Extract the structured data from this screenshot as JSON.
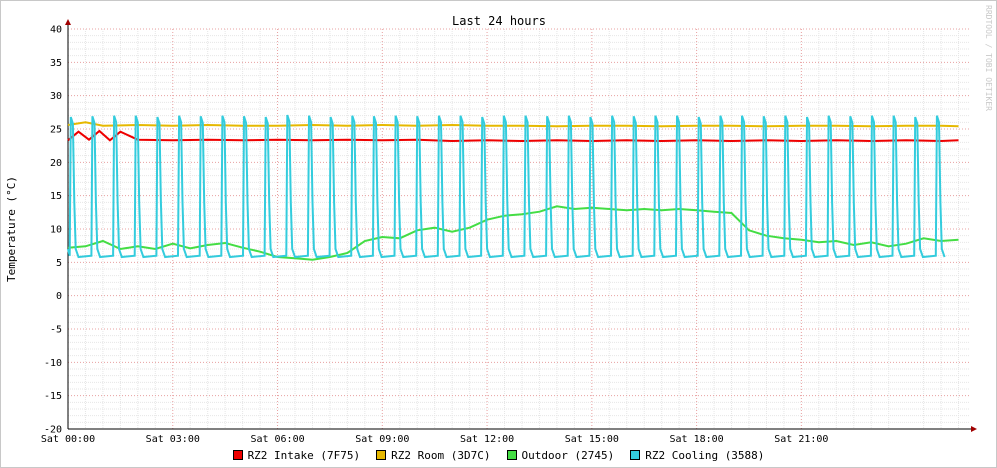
{
  "chart_data": {
    "type": "line",
    "title": "Last 24 hours",
    "ylabel": "Temperature (°C)",
    "xlabel": "",
    "watermark": "RRDTOOL / TOBI OETIKER",
    "ylim": [
      -20,
      40
    ],
    "yticks": [
      -20,
      -15,
      -10,
      -5,
      0,
      5,
      10,
      15,
      20,
      25,
      30,
      35,
      40
    ],
    "xlim": [
      0,
      25.8
    ],
    "xticks": [
      {
        "x": 0,
        "label": "Sat 00:00"
      },
      {
        "x": 3,
        "label": "Sat 03:00"
      },
      {
        "x": 6,
        "label": "Sat 06:00"
      },
      {
        "x": 9,
        "label": "Sat 09:00"
      },
      {
        "x": 12,
        "label": "Sat 12:00"
      },
      {
        "x": 15,
        "label": "Sat 15:00"
      },
      {
        "x": 18,
        "label": "Sat 18:00"
      },
      {
        "x": 21,
        "label": "Sat 21:00"
      }
    ],
    "series": [
      {
        "name": "RZ2 Intake (7F75)",
        "color": "#ee0000",
        "x": [
          0,
          0.3,
          0.6,
          0.9,
          1.2,
          1.5,
          2.0,
          3.0,
          4.0,
          5.0,
          6.0,
          7.0,
          8.0,
          9.0,
          10.0,
          11.0,
          12.0,
          13.0,
          14.0,
          15.0,
          16.0,
          17.0,
          18.0,
          19.0,
          20.0,
          21.0,
          22.0,
          23.0,
          24.0,
          25.0,
          25.5
        ],
        "y": [
          23.3,
          24.6,
          23.4,
          24.7,
          23.3,
          24.6,
          23.4,
          23.3,
          23.4,
          23.3,
          23.4,
          23.3,
          23.4,
          23.3,
          23.4,
          23.2,
          23.3,
          23.2,
          23.3,
          23.2,
          23.3,
          23.2,
          23.3,
          23.2,
          23.3,
          23.2,
          23.3,
          23.2,
          23.3,
          23.2,
          23.3
        ]
      },
      {
        "name": "RZ2 Room (3D7C)",
        "color": "#e6b800",
        "x": [
          0,
          0.5,
          1.0,
          2.0,
          3.0,
          4.0,
          5.0,
          6.0,
          7.0,
          8.0,
          9.0,
          10.0,
          11.0,
          12.0,
          13.0,
          14.0,
          15.0,
          16.0,
          17.0,
          18.0,
          19.0,
          20.0,
          21.0,
          22.0,
          23.0,
          24.0,
          25.0,
          25.5
        ],
        "y": [
          25.6,
          26.0,
          25.5,
          25.6,
          25.5,
          25.6,
          25.5,
          25.5,
          25.6,
          25.5,
          25.6,
          25.5,
          25.6,
          25.5,
          25.5,
          25.4,
          25.5,
          25.5,
          25.4,
          25.5,
          25.5,
          25.4,
          25.5,
          25.5,
          25.4,
          25.5,
          25.5,
          25.4
        ]
      },
      {
        "name": "Outdoor (2745)",
        "color": "#44dd44",
        "x": [
          0,
          0.5,
          1.0,
          1.5,
          2.0,
          2.5,
          3.0,
          3.5,
          4.0,
          4.5,
          5.0,
          5.5,
          6.0,
          6.5,
          7.0,
          7.5,
          8.0,
          8.5,
          9.0,
          9.5,
          10.0,
          10.5,
          11.0,
          11.5,
          12.0,
          12.5,
          13.0,
          13.5,
          14.0,
          14.5,
          15.0,
          15.5,
          16.0,
          16.5,
          17.0,
          17.5,
          18.0,
          18.5,
          19.0,
          19.5,
          20.0,
          20.5,
          21.0,
          21.5,
          22.0,
          22.5,
          23.0,
          23.5,
          24.0,
          24.5,
          25.0,
          25.5
        ],
        "y": [
          7.2,
          7.4,
          8.2,
          7.0,
          7.4,
          7.0,
          7.8,
          7.1,
          7.6,
          7.9,
          7.2,
          6.6,
          5.8,
          5.6,
          5.4,
          5.8,
          6.4,
          8.2,
          8.8,
          8.6,
          9.8,
          10.2,
          9.6,
          10.2,
          11.4,
          12.0,
          12.2,
          12.6,
          13.4,
          13.0,
          13.2,
          13.0,
          12.8,
          13.0,
          12.8,
          13.0,
          12.8,
          12.6,
          12.4,
          9.8,
          9.0,
          8.6,
          8.4,
          8.0,
          8.2,
          7.6,
          8.0,
          7.4,
          7.8,
          8.6,
          8.2,
          8.4
        ]
      },
      {
        "name": "RZ2 Cooling (3588)",
        "color": "#33ccdd",
        "x": [
          0.1,
          0.72,
          1.34,
          1.96,
          2.58,
          3.2,
          3.82,
          4.44,
          5.06,
          5.68,
          6.3,
          6.92,
          7.54,
          8.16,
          8.78,
          9.4,
          10.02,
          10.64,
          11.26,
          11.88,
          12.5,
          13.12,
          13.74,
          14.36,
          14.98,
          15.6,
          16.22,
          16.84,
          17.46,
          18.08,
          18.7,
          19.32,
          19.94,
          20.56,
          21.18,
          21.8,
          22.42,
          23.04,
          23.66,
          24.28,
          24.9
        ],
        "y": [
          26.8,
          26.9,
          27.0,
          27.0,
          26.8,
          27.0,
          26.9,
          27.0,
          26.9,
          26.8,
          27.1,
          27.0,
          26.8,
          27.0,
          26.9,
          27.0,
          26.9,
          27.0,
          27.0,
          26.8,
          27.0,
          27.0,
          26.9,
          27.0,
          26.8,
          27.0,
          26.9,
          27.0,
          27.0,
          26.8,
          27.0,
          27.0,
          26.9,
          27.0,
          26.8,
          27.0,
          26.9,
          27.0,
          27.0,
          26.8,
          27.0
        ]
      }
    ],
    "legend_position": "bottom",
    "grid": true
  }
}
